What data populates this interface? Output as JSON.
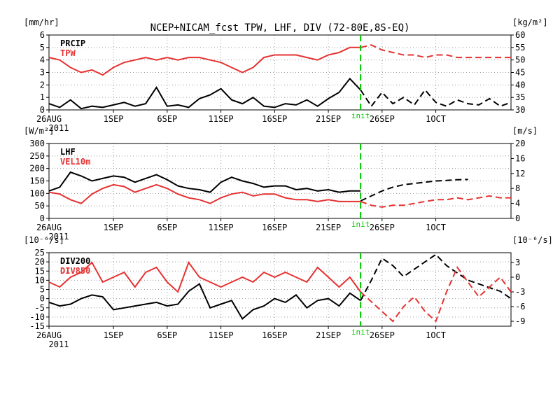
{
  "title": "NCEP+NICAM_fcst TPW, LHF, DIV (72-80E,8S-EQ)",
  "colors": {
    "black": "#000000",
    "red": "#e63232",
    "init": "#00c800",
    "grid": "#9a9a9a"
  },
  "x_labels": [
    "26AUG",
    "1SEP",
    "6SEP",
    "11SEP",
    "16SEP",
    "21SEP",
    "26SEP",
    "1OCT"
  ],
  "x_year": "2011",
  "init_label": "init",
  "init_day": 29,
  "chart_data": [
    {
      "type": "line",
      "ylabel_left": "[mm/hr]",
      "ylabel_right": "[kg/m²]",
      "left_range": [
        0,
        6
      ],
      "left_ticks": [
        0,
        1,
        2,
        3,
        4,
        5,
        6
      ],
      "right_range": [
        30,
        60
      ],
      "right_ticks": [
        30,
        35,
        40,
        45,
        50,
        55,
        60
      ],
      "series": [
        {
          "name": "PRCIP",
          "axis": "left",
          "color": "black",
          "days": [
            0,
            1,
            2,
            3,
            4,
            5,
            6,
            7,
            8,
            9,
            10,
            11,
            12,
            13,
            14,
            15,
            16,
            17,
            18,
            19,
            20,
            21,
            22,
            23,
            24,
            25,
            26,
            27,
            28,
            29
          ],
          "values": [
            0.5,
            0.2,
            0.8,
            0.1,
            0.3,
            0.2,
            0.4,
            0.6,
            0.3,
            0.5,
            1.8,
            0.3,
            0.4,
            0.2,
            0.9,
            1.2,
            1.7,
            0.8,
            0.5,
            1.0,
            0.3,
            0.2,
            0.5,
            0.4,
            0.8,
            0.3,
            0.9,
            1.4,
            2.5,
            1.6
          ],
          "forecast": [
            null,
            null,
            null,
            null,
            null,
            null,
            null,
            null,
            null,
            null,
            null,
            null,
            null,
            null,
            null,
            null,
            null,
            null,
            null,
            null,
            null,
            null,
            null,
            null,
            null,
            null,
            null,
            null,
            null,
            1.6,
            0.3,
            1.4,
            0.5,
            1.0,
            0.4,
            1.6,
            0.6,
            0.3,
            0.8,
            0.5,
            0.4,
            0.9,
            0.3,
            0.6
          ]
        },
        {
          "name": "TPW",
          "axis": "right",
          "color": "red",
          "days": [
            0,
            1,
            2,
            3,
            4,
            5,
            6,
            7,
            8,
            9,
            10,
            11,
            12,
            13,
            14,
            15,
            16,
            17,
            18,
            19,
            20,
            21,
            22,
            23,
            24,
            25,
            26,
            27,
            28,
            29
          ],
          "values": [
            51,
            50,
            47,
            45,
            46,
            44,
            47,
            49,
            50,
            51,
            50,
            51,
            50,
            51,
            51,
            50,
            49,
            47,
            45,
            47,
            51,
            52,
            52,
            52,
            51,
            50,
            52,
            53,
            55,
            55
          ],
          "forecast": [
            null,
            null,
            null,
            null,
            null,
            null,
            null,
            null,
            null,
            null,
            null,
            null,
            null,
            null,
            null,
            null,
            null,
            null,
            null,
            null,
            null,
            null,
            null,
            null,
            null,
            null,
            null,
            null,
            null,
            55,
            56,
            54,
            53,
            52,
            52,
            51,
            52,
            52,
            51,
            51,
            51,
            51,
            51,
            51
          ]
        }
      ]
    },
    {
      "type": "line",
      "ylabel_left": "[W/m²]",
      "ylabel_right": "[m/s]",
      "left_range": [
        0,
        300
      ],
      "left_ticks": [
        0,
        50,
        100,
        150,
        200,
        250,
        300
      ],
      "right_range": [
        0,
        20
      ],
      "right_ticks": [
        0,
        4,
        8,
        12,
        16,
        20
      ],
      "series": [
        {
          "name": "LHF",
          "axis": "left",
          "color": "black",
          "days": [
            0,
            1,
            2,
            3,
            4,
            5,
            6,
            7,
            8,
            9,
            10,
            11,
            12,
            13,
            14,
            15,
            16,
            17,
            18,
            19,
            20,
            21,
            22,
            23,
            24,
            25,
            26,
            27,
            28,
            29
          ],
          "values": [
            110,
            125,
            185,
            170,
            150,
            160,
            170,
            165,
            145,
            160,
            175,
            155,
            130,
            120,
            115,
            105,
            145,
            165,
            150,
            140,
            125,
            130,
            130,
            115,
            120,
            110,
            115,
            105,
            110,
            110
          ],
          "forecast": [
            null,
            null,
            null,
            null,
            null,
            null,
            null,
            null,
            null,
            null,
            null,
            null,
            null,
            null,
            null,
            null,
            null,
            null,
            null,
            null,
            null,
            null,
            null,
            null,
            null,
            null,
            null,
            null,
            null,
            70,
            90,
            110,
            125,
            135,
            140,
            145,
            150,
            152,
            155,
            156,
            null,
            null,
            null,
            null
          ]
        },
        {
          "name": "VEL10m",
          "axis": "right",
          "color": "red",
          "days": [
            0,
            1,
            2,
            3,
            4,
            5,
            6,
            7,
            8,
            9,
            10,
            11,
            12,
            13,
            14,
            15,
            16,
            17,
            18,
            19,
            20,
            21,
            22,
            23,
            24,
            25,
            26,
            27,
            28,
            29
          ],
          "values": [
            7,
            6.5,
            5,
            4,
            6.5,
            8,
            9,
            8.5,
            7,
            8,
            9,
            8,
            6.5,
            5.5,
            5,
            4,
            5.5,
            6.5,
            7,
            6,
            6.5,
            6.5,
            5.5,
            5,
            5,
            4.5,
            5,
            4.5,
            4.5,
            4.5
          ],
          "forecast": [
            null,
            null,
            null,
            null,
            null,
            null,
            null,
            null,
            null,
            null,
            null,
            null,
            null,
            null,
            null,
            null,
            null,
            null,
            null,
            null,
            null,
            null,
            null,
            null,
            null,
            null,
            null,
            null,
            null,
            4.5,
            3.5,
            3,
            3.5,
            3.5,
            4,
            4.5,
            5,
            5,
            5.5,
            5,
            5.5,
            6,
            5.5,
            5.5
          ]
        }
      ]
    },
    {
      "type": "line",
      "ylabel_left": "[10⁻⁶/s]",
      "ylabel_right": "[10⁻⁶/s]",
      "left_range": [
        -15,
        25
      ],
      "left_ticks": [
        -15,
        -10,
        -5,
        0,
        5,
        10,
        15,
        20,
        25
      ],
      "right_range": [
        -10,
        5
      ],
      "right_ticks": [
        -9,
        -6,
        -3,
        0,
        3
      ],
      "series": [
        {
          "name": "DIV200",
          "axis": "left",
          "color": "black",
          "days": [
            0,
            1,
            2,
            3,
            4,
            5,
            6,
            7,
            8,
            9,
            10,
            11,
            12,
            13,
            14,
            15,
            16,
            17,
            18,
            19,
            20,
            21,
            22,
            23,
            24,
            25,
            26,
            27,
            28,
            29
          ],
          "values": [
            -2,
            -4,
            -3,
            0,
            2,
            1,
            -6,
            -5,
            -4,
            -3,
            -2,
            -4,
            -3,
            4,
            8,
            -5,
            -3,
            -1,
            -11,
            -6,
            -4,
            0,
            -2,
            2,
            -5,
            -1,
            0,
            -4,
            3,
            -1
          ],
          "forecast": [
            null,
            null,
            null,
            null,
            null,
            null,
            null,
            null,
            null,
            null,
            null,
            null,
            null,
            null,
            null,
            null,
            null,
            null,
            null,
            null,
            null,
            null,
            null,
            null,
            null,
            null,
            null,
            null,
            null,
            -1,
            10,
            22,
            18,
            12,
            16,
            20,
            24,
            18,
            14,
            10,
            8,
            6,
            4,
            0
          ]
        },
        {
          "name": "DIV850",
          "axis": "right",
          "color": "red",
          "days": [
            0,
            1,
            2,
            3,
            4,
            5,
            6,
            7,
            8,
            9,
            10,
            11,
            12,
            13,
            14,
            15,
            16,
            17,
            18,
            19,
            20,
            21,
            22,
            23,
            24,
            25,
            26,
            27,
            28,
            29
          ],
          "values": [
            -1,
            -2,
            0,
            1,
            3,
            -1,
            0,
            1,
            -2,
            1,
            2,
            -1,
            -3,
            3,
            0,
            -1,
            -2,
            -1,
            0,
            -1,
            1,
            0,
            1,
            0,
            -1,
            2,
            0,
            -2,
            0,
            -3
          ],
          "forecast": [
            null,
            null,
            null,
            null,
            null,
            null,
            null,
            null,
            null,
            null,
            null,
            null,
            null,
            null,
            null,
            null,
            null,
            null,
            null,
            null,
            null,
            null,
            null,
            null,
            null,
            null,
            null,
            null,
            null,
            -3,
            -5,
            -7,
            -9,
            -6,
            -4,
            -7,
            -9,
            -3,
            2,
            -1,
            -4,
            -2,
            0,
            -3
          ]
        }
      ]
    }
  ]
}
